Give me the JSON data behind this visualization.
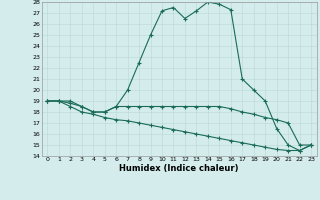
{
  "xlabel": "Humidex (Indice chaleur)",
  "bg_color": "#d4ecec",
  "line_color": "#1a6b5a",
  "grid_color": "#b8d8d8",
  "ylim": [
    14,
    28
  ],
  "xlim": [
    -0.5,
    23.5
  ],
  "yticks": [
    14,
    15,
    16,
    17,
    18,
    19,
    20,
    21,
    22,
    23,
    24,
    25,
    26,
    27,
    28
  ],
  "xticks": [
    0,
    1,
    2,
    3,
    4,
    5,
    6,
    7,
    8,
    9,
    10,
    11,
    12,
    13,
    14,
    15,
    16,
    17,
    18,
    19,
    20,
    21,
    22,
    23
  ],
  "line1_x": [
    0,
    1,
    2,
    3,
    4,
    5,
    6,
    7,
    8,
    9,
    10,
    11,
    12,
    13,
    14,
    15,
    16,
    17,
    18,
    19,
    20,
    21,
    22,
    23
  ],
  "line1_y": [
    19,
    19,
    18.8,
    18.5,
    18.0,
    18.0,
    18.5,
    18.5,
    18.5,
    18.5,
    18.5,
    18.5,
    18.5,
    18.5,
    18.5,
    18.5,
    18.3,
    18.0,
    17.8,
    17.5,
    17.3,
    17.0,
    15.0,
    15.0
  ],
  "line2_x": [
    0,
    1,
    2,
    3,
    4,
    5,
    6,
    7,
    8,
    9,
    10,
    11,
    12,
    13,
    14,
    15,
    16,
    17,
    18,
    19,
    20,
    21,
    22,
    23
  ],
  "line2_y": [
    19,
    19,
    19,
    18.5,
    18.0,
    18.0,
    18.5,
    20.0,
    22.5,
    25.0,
    27.2,
    27.5,
    26.5,
    27.2,
    28.0,
    27.8,
    27.3,
    21.0,
    20.0,
    19.0,
    16.5,
    15.0,
    14.5,
    15.0
  ],
  "line3_x": [
    0,
    1,
    2,
    3,
    4,
    5,
    6,
    7,
    8,
    9,
    10,
    11,
    12,
    13,
    14,
    15,
    16,
    17,
    18,
    19,
    20,
    21,
    22,
    23
  ],
  "line3_y": [
    19,
    19,
    18.5,
    18.0,
    17.8,
    17.5,
    17.3,
    17.2,
    17.0,
    16.8,
    16.6,
    16.4,
    16.2,
    16.0,
    15.8,
    15.6,
    15.4,
    15.2,
    15.0,
    14.8,
    14.6,
    14.5,
    14.5,
    15.0
  ]
}
